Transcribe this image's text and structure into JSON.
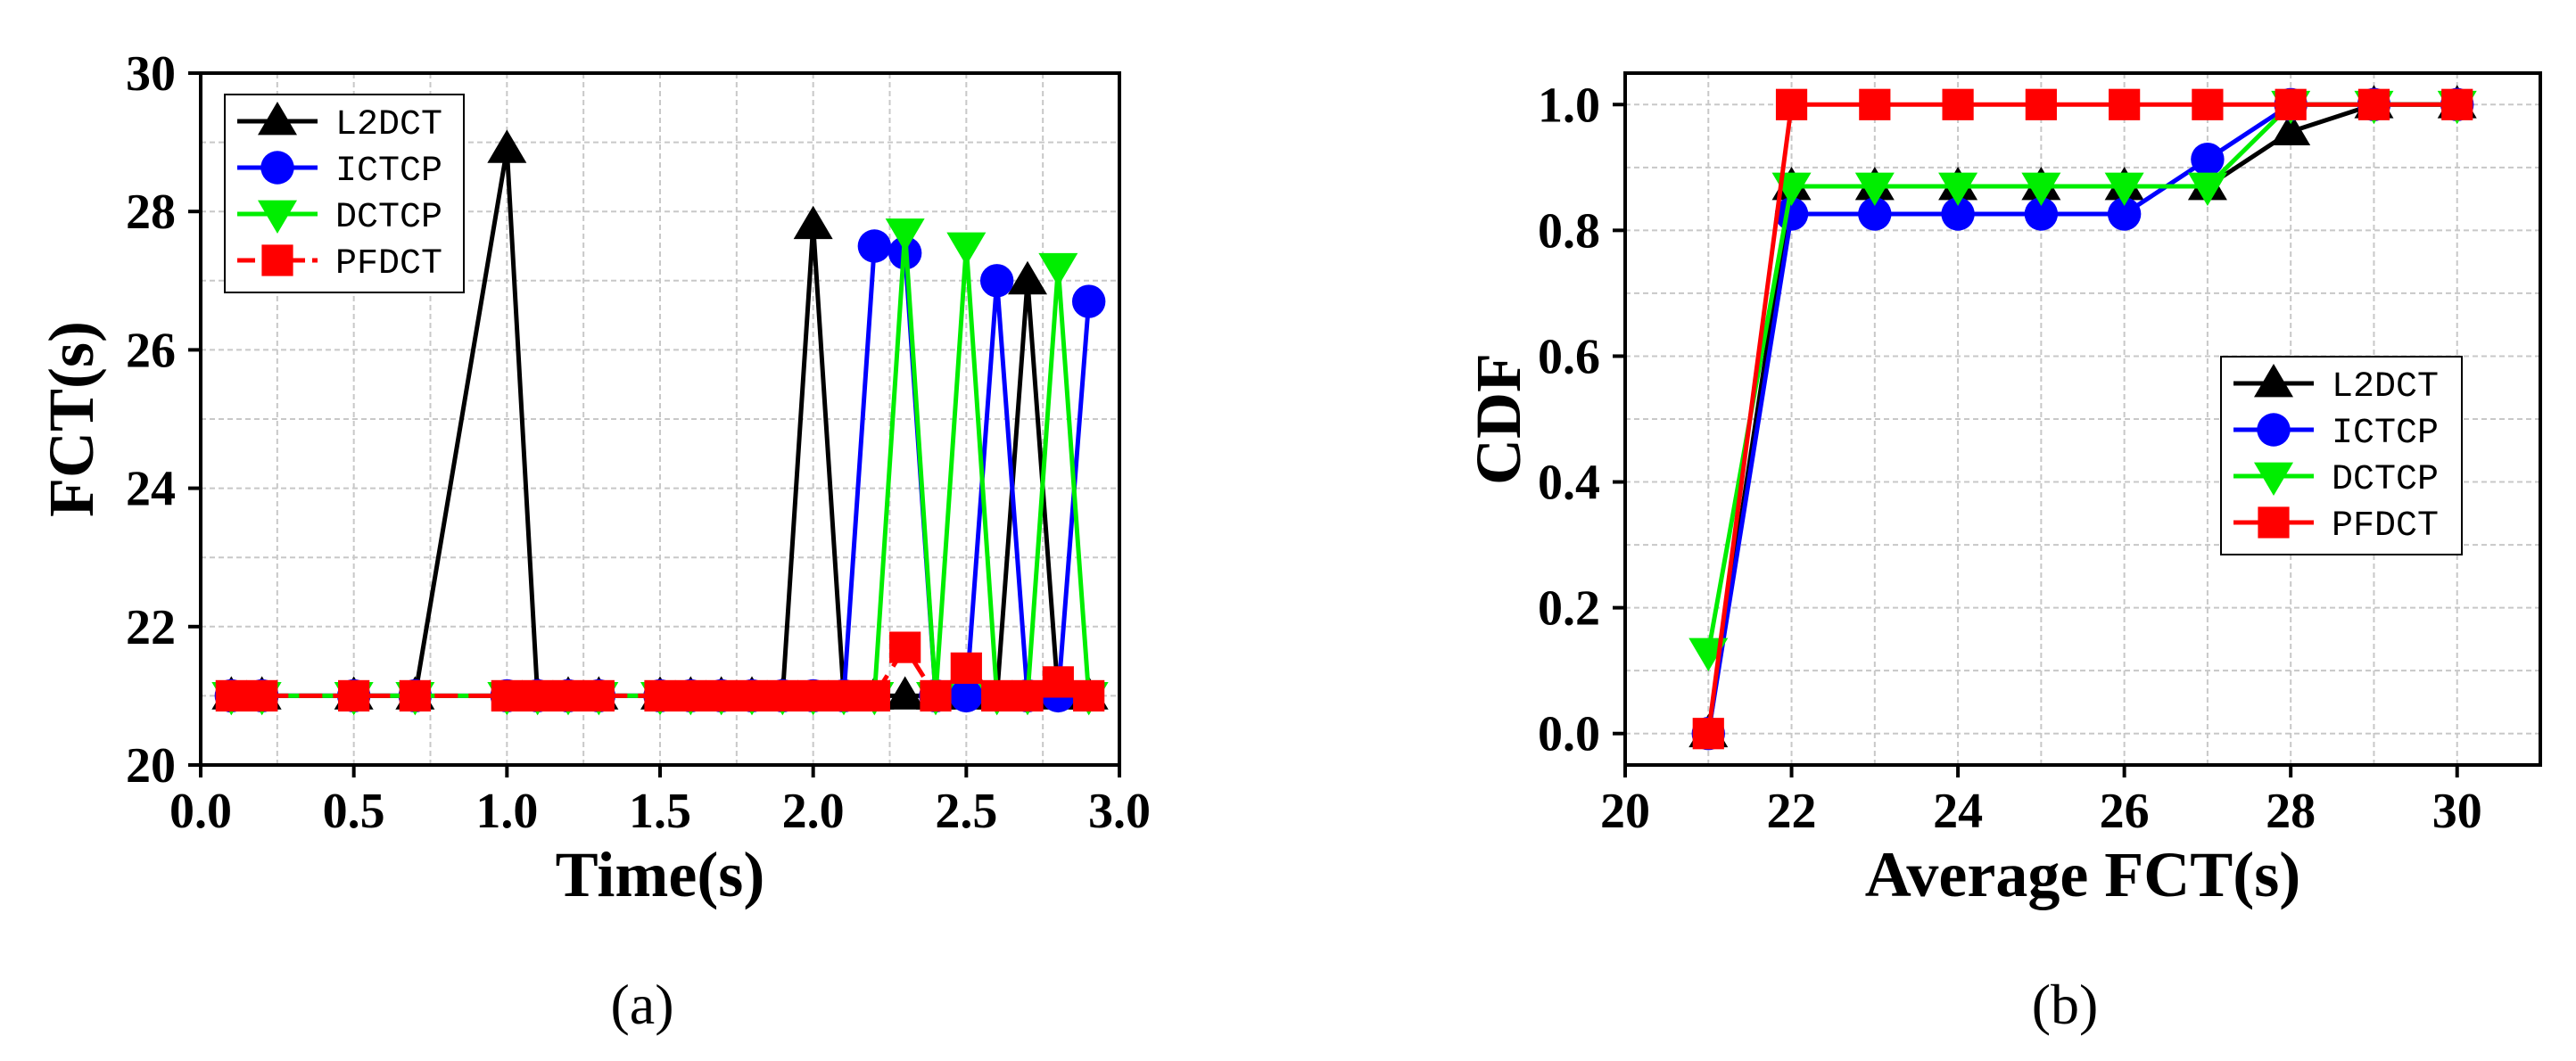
{
  "chart_data": [
    {
      "type": "line",
      "caption": "(a)",
      "xlabel": "Time(s)",
      "ylabel": "FCT(s)",
      "xlim": [
        0.0,
        3.0
      ],
      "ylim": [
        20,
        30
      ],
      "xticks": [
        0.0,
        0.5,
        1.0,
        1.5,
        2.0,
        2.5,
        3.0
      ],
      "xtick_labels": [
        "0.0",
        "0.5",
        "1.0",
        "1.5",
        "2.0",
        "2.5",
        "3.0"
      ],
      "yticks": [
        20,
        22,
        24,
        26,
        28,
        30
      ],
      "ytick_labels": [
        "20",
        "22",
        "24",
        "26",
        "28",
        "30"
      ],
      "grid": true,
      "legend_position": "top-left",
      "series": [
        {
          "name": "L2DCT",
          "color": "#000000",
          "marker": "triangle-up",
          "dashed": false,
          "x": [
            0.1,
            0.2,
            0.5,
            0.7,
            1.0,
            1.1,
            1.2,
            1.3,
            1.5,
            1.6,
            1.7,
            1.8,
            1.9,
            2.0,
            2.1,
            2.2,
            2.3,
            2.4,
            2.5,
            2.6,
            2.7,
            2.8,
            2.9
          ],
          "y": [
            21,
            21,
            21,
            21,
            28.9,
            21,
            21,
            21,
            21,
            21,
            21,
            21,
            21,
            27.8,
            21,
            21,
            21,
            21,
            21,
            21,
            27.0,
            21,
            21
          ]
        },
        {
          "name": "ICTCP",
          "color": "#0000ff",
          "marker": "circle",
          "dashed": false,
          "x": [
            0.1,
            0.2,
            0.5,
            0.7,
            1.0,
            1.1,
            1.2,
            1.3,
            1.5,
            1.6,
            1.7,
            1.8,
            1.9,
            2.0,
            2.1,
            2.2,
            2.3,
            2.4,
            2.5,
            2.6,
            2.7,
            2.8,
            2.9
          ],
          "y": [
            21,
            21,
            21,
            21,
            21,
            21,
            21,
            21,
            21,
            21,
            21,
            21,
            21,
            21,
            21,
            27.5,
            27.4,
            21,
            21,
            27.0,
            21,
            21,
            26.7
          ]
        },
        {
          "name": "DCTCP",
          "color": "#00ee00",
          "marker": "triangle-down",
          "dashed": false,
          "x": [
            0.1,
            0.2,
            0.5,
            0.7,
            1.0,
            1.1,
            1.2,
            1.3,
            1.5,
            1.6,
            1.7,
            1.8,
            1.9,
            2.0,
            2.1,
            2.2,
            2.3,
            2.4,
            2.5,
            2.6,
            2.7,
            2.8,
            2.9
          ],
          "y": [
            21,
            21,
            21,
            21,
            21,
            21,
            21,
            21,
            21,
            21,
            21,
            21,
            21,
            21,
            21,
            21,
            27.7,
            21,
            27.5,
            21,
            21,
            27.2,
            21
          ]
        },
        {
          "name": "PFDCT",
          "color": "#ff0000",
          "marker": "square",
          "dashed": true,
          "x": [
            0.1,
            0.2,
            0.5,
            0.7,
            1.0,
            1.1,
            1.2,
            1.3,
            1.5,
            1.6,
            1.7,
            1.8,
            1.9,
            2.0,
            2.1,
            2.2,
            2.3,
            2.4,
            2.5,
            2.6,
            2.7,
            2.8,
            2.9
          ],
          "y": [
            21,
            21,
            21,
            21,
            21,
            21,
            21,
            21,
            21,
            21,
            21,
            21,
            21,
            21,
            21,
            21,
            21.7,
            21,
            21.4,
            21,
            21,
            21.2,
            21
          ]
        }
      ]
    },
    {
      "type": "line",
      "caption": "(b)",
      "xlabel": "Average FCT(s)",
      "ylabel": "CDF",
      "xlim": [
        20,
        31
      ],
      "ylim": [
        -0.05,
        1.05
      ],
      "xticks": [
        20,
        22,
        24,
        26,
        28,
        30
      ],
      "xtick_labels": [
        "20",
        "22",
        "24",
        "26",
        "28",
        "30"
      ],
      "yticks": [
        0.0,
        0.2,
        0.4,
        0.6,
        0.8,
        1.0
      ],
      "ytick_labels": [
        "0.0",
        "0.2",
        "0.4",
        "0.6",
        "0.8",
        "1.0"
      ],
      "grid": true,
      "legend_position": "center-right",
      "series": [
        {
          "name": "L2DCT",
          "color": "#000000",
          "marker": "triangle-up",
          "dashed": false,
          "x": [
            21,
            22,
            23,
            24,
            25,
            26,
            27,
            28,
            29,
            30
          ],
          "y": [
            0,
            0.87,
            0.87,
            0.87,
            0.87,
            0.87,
            0.87,
            0.957,
            1.0,
            1.0
          ]
        },
        {
          "name": "ICTCP",
          "color": "#0000ff",
          "marker": "circle",
          "dashed": false,
          "x": [
            21,
            22,
            23,
            24,
            25,
            26,
            27,
            28,
            29,
            30
          ],
          "y": [
            0,
            0.826,
            0.826,
            0.826,
            0.826,
            0.826,
            0.913,
            1.0,
            1.0,
            1.0
          ]
        },
        {
          "name": "DCTCP",
          "color": "#00ee00",
          "marker": "triangle-down",
          "dashed": false,
          "x": [
            21,
            22,
            23,
            24,
            25,
            26,
            27,
            28,
            29,
            30
          ],
          "y": [
            0.13,
            0.87,
            0.87,
            0.87,
            0.87,
            0.87,
            0.87,
            1.0,
            1.0,
            1.0
          ]
        },
        {
          "name": "PFDCT",
          "color": "#ff0000",
          "marker": "square",
          "dashed": false,
          "x": [
            21,
            22,
            23,
            24,
            25,
            26,
            27,
            28,
            29,
            30
          ],
          "y": [
            0,
            1.0,
            1.0,
            1.0,
            1.0,
            1.0,
            1.0,
            1.0,
            1.0,
            1.0
          ]
        }
      ]
    }
  ]
}
